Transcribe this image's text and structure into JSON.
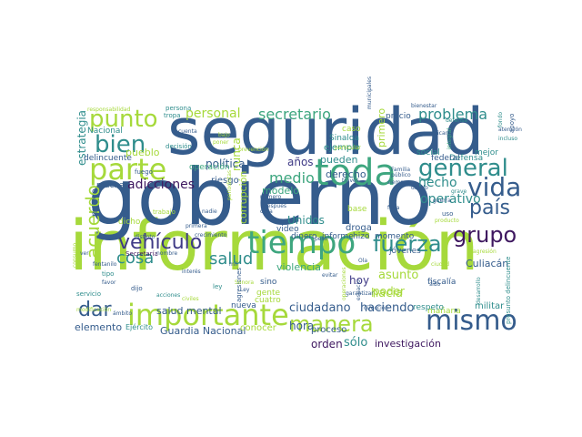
{
  "words": [
    {
      "text": "información",
      "color": "#a6d93b",
      "orientation": "horizontal"
    },
    {
      "text": "gobierno",
      "color": "#355c8c",
      "orientation": "horizontal"
    },
    {
      "text": "seguridad",
      "color": "#355c8c",
      "orientation": "horizontal"
    },
    {
      "text": "tiempo",
      "color": "#3ea67f",
      "orientation": "horizontal"
    },
    {
      "text": "toda",
      "color": "#3ea67f",
      "orientation": "horizontal"
    },
    {
      "text": "importante",
      "color": "#a6d93b",
      "orientation": "horizontal"
    },
    {
      "text": "mismo",
      "color": "#355c8c",
      "orientation": "horizontal"
    },
    {
      "text": "parte",
      "color": "#a6d93b",
      "orientation": "horizontal"
    },
    {
      "text": "punto",
      "color": "#a6d93b",
      "orientation": "horizontal"
    },
    {
      "text": "bien",
      "color": "#2f8d8c",
      "orientation": "horizontal"
    },
    {
      "text": "general",
      "color": "#2f8d8c",
      "orientation": "horizontal"
    },
    {
      "text": "vida",
      "color": "#355c8c",
      "orientation": "horizontal"
    },
    {
      "text": "manera",
      "color": "#a6d93b",
      "orientation": "horizontal"
    },
    {
      "text": "fuerza",
      "color": "#2f8d8c",
      "orientation": "horizontal"
    },
    {
      "text": "vehículo",
      "color": "#3f3a86",
      "orientation": "horizontal"
    },
    {
      "text": "grupo",
      "color": "#3f1860",
      "orientation": "horizontal"
    },
    {
      "text": "país",
      "color": "#355c8c",
      "orientation": "horizontal"
    },
    {
      "text": "acuerdo",
      "color": "#a6d93b",
      "orientation": "vertical"
    },
    {
      "text": "dar",
      "color": "#355c8c",
      "orientation": "horizontal"
    },
    {
      "text": "cosa",
      "color": "#2f8d8c",
      "orientation": "horizontal"
    },
    {
      "text": "salud",
      "color": "#2f8d8c",
      "orientation": "horizontal"
    },
    {
      "text": "secretario",
      "color": "#3ea67f",
      "orientation": "horizontal"
    },
    {
      "text": "personal",
      "color": "#a6d93b",
      "orientation": "horizontal"
    },
    {
      "text": "problema",
      "color": "#2f8d8c",
      "orientation": "horizontal"
    },
    {
      "text": "medio",
      "color": "#3ea67f",
      "orientation": "horizontal"
    },
    {
      "text": "hacia",
      "color": "#a6d93b",
      "orientation": "horizontal"
    },
    {
      "text": "hecho",
      "color": "#2f8d8c",
      "orientation": "horizontal"
    },
    {
      "text": "operativo",
      "color": "#2f8d8c",
      "orientation": "horizontal"
    },
    {
      "text": "adicciones",
      "color": "#3f1860",
      "orientation": "horizontal"
    },
    {
      "text": "asunto",
      "color": "#a6d93b",
      "orientation": "horizontal"
    },
    {
      "text": "poder",
      "color": "#a6d93b",
      "orientation": "horizontal"
    },
    {
      "text": "ciudadano",
      "color": "#355c8c",
      "orientation": "horizontal"
    },
    {
      "text": "haciendo",
      "color": "#355c8c",
      "orientation": "horizontal"
    },
    {
      "text": "hora",
      "color": "#355c8c",
      "orientation": "horizontal"
    },
    {
      "text": "orden",
      "color": "#3f1860",
      "orientation": "horizontal"
    },
    {
      "text": "sólo",
      "color": "#2f8d8c",
      "orientation": "horizontal"
    },
    {
      "text": "investigación",
      "color": "#3f1860",
      "orientation": "horizontal"
    },
    {
      "text": "Culiacán",
      "color": "#355c8c",
      "orientation": "horizontal"
    },
    {
      "text": "violencia",
      "color": "#3ea67f",
      "orientation": "horizontal"
    },
    {
      "text": "Unidos",
      "color": "#2f8d8c",
      "orientation": "horizontal"
    },
    {
      "text": "hoy",
      "color": "#3f3a86",
      "orientation": "horizontal"
    },
    {
      "text": "nunca",
      "color": "#a6d93b",
      "orientation": "vertical"
    },
    {
      "text": "estrategia",
      "color": "#2f8d8c",
      "orientation": "vertical"
    },
    {
      "text": "corrupción",
      "color": "#a6d93b",
      "orientation": "vertical"
    },
    {
      "text": "pueblo",
      "color": "#a6d93b",
      "orientation": "horizontal"
    },
    {
      "text": "política",
      "color": "#355c8c",
      "orientation": "horizontal"
    },
    {
      "text": "años",
      "color": "#3f3a86",
      "orientation": "horizontal"
    },
    {
      "text": "modelo",
      "color": "#3ea67f",
      "orientation": "horizontal"
    },
    {
      "text": "derecho",
      "color": "#355c8c",
      "orientation": "horizontal"
    },
    {
      "text": "pueden",
      "color": "#2f8d8c",
      "orientation": "horizontal"
    },
    {
      "text": "ejemplo",
      "color": "#2f8d8c",
      "orientation": "horizontal"
    },
    {
      "text": "primero",
      "color": "#a6d93b",
      "orientation": "vertical"
    },
    {
      "text": "Guardia Nacional",
      "color": "#355c8c",
      "orientation": "horizontal"
    },
    {
      "text": "salud mental",
      "color": "#355c8c",
      "orientation": "horizontal"
    },
    {
      "text": "elemento",
      "color": "#355c8c",
      "orientation": "horizontal"
    },
    {
      "text": "nuevo",
      "color": "#355c8c",
      "orientation": "vertical"
    },
    {
      "text": "droga",
      "color": "#355c8c",
      "orientation": "horizontal"
    },
    {
      "text": "militar",
      "color": "#2f8d8c",
      "orientation": "horizontal"
    },
    {
      "text": "mañana",
      "color": "#a6d93b",
      "orientation": "horizontal"
    },
    {
      "text": "proceso",
      "color": "#355c8c",
      "orientation": "horizontal"
    },
    {
      "text": "conocer",
      "color": "#a6d93b",
      "orientation": "horizontal"
    },
    {
      "text": "video",
      "color": "#355c8c",
      "orientation": "horizontal"
    },
    {
      "text": "informe",
      "color": "#355c8c",
      "orientation": "horizontal"
    },
    {
      "text": "dinero",
      "color": "#355c8c",
      "orientation": "horizontal"
    },
    {
      "text": "hizo",
      "color": "#355c8c",
      "orientation": "horizontal"
    },
    {
      "text": "riesgo",
      "color": "#355c8c",
      "orientation": "horizontal"
    },
    {
      "text": "muchas",
      "color": "#355c8c",
      "orientation": "horizontal"
    },
    {
      "text": "dicho",
      "color": "#a6d93b",
      "orientation": "horizontal"
    },
    {
      "text": "Nacional",
      "color": "#2f8d8c",
      "orientation": "horizontal"
    },
    {
      "text": "delincuente",
      "color": "#355c8c",
      "orientation": "horizontal"
    },
    {
      "text": "fiscalía",
      "color": "#355c8c",
      "orientation": "horizontal"
    },
    {
      "text": "jóvenes",
      "color": "#355c8c",
      "orientation": "horizontal"
    },
    {
      "text": "Defensa",
      "color": "#2f8d8c",
      "orientation": "horizontal"
    },
    {
      "text": "precio",
      "color": "#355c8c",
      "orientation": "horizontal"
    },
    {
      "text": "caso",
      "color": "#a6d93b",
      "orientation": "horizontal"
    },
    {
      "text": "Sinaloa",
      "color": "#2f8d8c",
      "orientation": "horizontal"
    },
    {
      "text": "operación",
      "color": "#3ea67f",
      "orientation": "horizontal"
    },
    {
      "text": "social",
      "color": "#2f8d8c",
      "orientation": "horizontal"
    },
    {
      "text": "federal",
      "color": "#355c8c",
      "orientation": "horizontal"
    },
    {
      "text": "cuatro",
      "color": "#a6d93b",
      "orientation": "horizontal"
    },
    {
      "text": "gente",
      "color": "#a6d93b",
      "orientation": "horizontal"
    },
    {
      "text": "sino",
      "color": "#355c8c",
      "orientation": "horizontal"
    },
    {
      "text": "nueva",
      "color": "#355c8c",
      "orientation": "horizontal"
    },
    {
      "text": "Ejército",
      "color": "#2f8d8c",
      "orientation": "horizontal"
    },
    {
      "text": "respeto",
      "color": "#2f8d8c",
      "orientation": "horizontal"
    },
    {
      "text": "mejor",
      "color": "#2f8d8c",
      "orientation": "horizontal"
    },
    {
      "text": "base",
      "color": "#a6d93b",
      "orientation": "horizontal"
    },
    {
      "text": "momento",
      "color": "#355c8c",
      "orientation": "horizontal"
    },
    {
      "text": "Secretaría",
      "color": "#3f1860",
      "orientation": "horizontal"
    },
    {
      "text": "tipo",
      "color": "#2f8d8c",
      "orientation": "horizontal"
    },
    {
      "text": "dijo",
      "color": "#355c8c",
      "orientation": "horizontal"
    },
    {
      "text": "ley",
      "color": "#2f8d8c",
      "orientation": "horizontal"
    },
    {
      "text": "persona",
      "color": "#2f8d8c",
      "orientation": "horizontal"
    },
    {
      "text": "responsabilidad",
      "color": "#a6d93b",
      "orientation": "horizontal"
    },
    {
      "text": "tropa",
      "color": "#2f8d8c",
      "orientation": "horizontal"
    },
    {
      "text": "fuego",
      "color": "#355c8c",
      "orientation": "horizontal"
    },
    {
      "text": "decisión",
      "color": "#2f8d8c",
      "orientation": "horizontal"
    },
    {
      "text": "cuenta",
      "color": "#355c8c",
      "orientation": "horizontal"
    },
    {
      "text": "poner",
      "color": "#a6d93b",
      "orientation": "horizontal"
    },
    {
      "text": "trabajo",
      "color": "#a6d93b",
      "orientation": "horizontal"
    },
    {
      "text": "nadie",
      "color": "#355c8c",
      "orientation": "horizontal"
    },
    {
      "text": "crecimiento",
      "color": "#355c8c",
      "orientation": "horizontal"
    },
    {
      "text": "distinto",
      "color": "#355c8c",
      "orientation": "horizontal"
    },
    {
      "text": "fentanilo",
      "color": "#355c8c",
      "orientation": "horizontal"
    },
    {
      "text": "servicio",
      "color": "#2f8d8c",
      "orientation": "horizontal"
    },
    {
      "text": "interés",
      "color": "#355c8c",
      "orientation": "horizontal"
    },
    {
      "text": "través",
      "color": "#355c8c",
      "orientation": "horizontal"
    },
    {
      "text": "casa",
      "color": "#355c8c",
      "orientation": "horizontal"
    },
    {
      "text": "número",
      "color": "#355c8c",
      "orientation": "horizontal"
    },
    {
      "text": "guerra",
      "color": "#355c8c",
      "orientation": "horizontal"
    },
    {
      "text": "falta",
      "color": "#355c8c",
      "orientation": "horizontal"
    },
    {
      "text": "uso",
      "color": "#355c8c",
      "orientation": "horizontal"
    },
    {
      "text": "peso",
      "color": "#355c8c",
      "orientation": "horizontal"
    },
    {
      "text": "sido",
      "color": "#355c8c",
      "orientation": "horizontal"
    },
    {
      "text": "evitar",
      "color": "#355c8c",
      "orientation": "horizontal"
    },
    {
      "text": "desarrollo",
      "color": "#2f8d8c",
      "orientation": "vertical"
    },
    {
      "text": "bienestar",
      "color": "#355c8c",
      "orientation": "horizontal"
    },
    {
      "text": "apoyo",
      "color": "#355c8c",
      "orientation": "vertical"
    },
    {
      "text": "mexicano",
      "color": "#355c8c",
      "orientation": "horizontal"
    },
    {
      "text": "Familia",
      "color": "#355c8c",
      "orientation": "horizontal"
    },
    {
      "text": "público",
      "color": "#355c8c",
      "orientation": "horizontal"
    },
    {
      "text": "siempre",
      "color": "#355c8c",
      "orientation": "horizontal"
    },
    {
      "text": "dando",
      "color": "#355c8c",
      "orientation": "horizontal"
    },
    {
      "text": "primera",
      "color": "#355c8c",
      "orientation": "horizontal"
    },
    {
      "text": "incluso",
      "color": "#2f8d8c",
      "orientation": "horizontal"
    },
    {
      "text": "atención",
      "color": "#355c8c",
      "orientation": "horizontal"
    },
    {
      "text": "nombre",
      "color": "#355c8c",
      "orientation": "horizontal"
    },
    {
      "text": "agresiones",
      "color": "#355c8c",
      "orientation": "vertical"
    },
    {
      "text": "presunto delincuente",
      "color": "#2f8d8c",
      "orientation": "vertical"
    },
    {
      "text": "consumo",
      "color": "#a6d93b",
      "orientation": "vertical"
    },
    {
      "text": "operaciones",
      "color": "#a6d93b",
      "orientation": "vertical"
    },
    {
      "text": "periodistas",
      "color": "#a6d93b",
      "orientation": "vertical"
    },
    {
      "text": "integral",
      "color": "#3ea67f",
      "orientation": "vertical"
    },
    {
      "text": "espacio",
      "color": "#355c8c",
      "orientation": "vertical"
    },
    {
      "text": "fondo",
      "color": "#2f8d8c",
      "orientation": "vertical"
    },
    {
      "text": "Sonora",
      "color": "#a6d93b",
      "orientation": "horizontal"
    },
    {
      "text": "mil",
      "color": "#355c8c",
      "orientation": "horizontal"
    },
    {
      "text": "grave",
      "color": "#2f8d8c",
      "orientation": "horizontal"
    },
    {
      "text": "producto",
      "color": "#a6d93b",
      "orientation": "horizontal"
    },
    {
      "text": "agresión",
      "color": "#a6d93b",
      "orientation": "horizontal"
    },
    {
      "text": "prevención",
      "color": "#a6d93b",
      "orientation": "horizontal"
    },
    {
      "text": "municipales",
      "color": "#355c8c",
      "orientation": "horizontal"
    },
    {
      "text": "particular",
      "color": "#a6d93b",
      "orientation": "horizontal"
    },
    {
      "text": "defensa",
      "color": "#2f8d8c",
      "orientation": "horizontal"
    },
    {
      "text": "después",
      "color": "#355c8c",
      "orientation": "horizontal"
    },
    {
      "text": "ciudad",
      "color": "#a6d93b",
      "orientation": "horizontal"
    },
    {
      "text": "bajo",
      "color": "#a6d93b",
      "orientation": "horizontal"
    },
    {
      "text": "Ley",
      "color": "#355c8c",
      "orientation": "horizontal"
    },
    {
      "text": "garantizar",
      "color": "#355c8c",
      "orientation": "horizontal"
    },
    {
      "text": "acciones",
      "color": "#2f8d8c",
      "orientation": "horizontal"
    },
    {
      "text": "civiles",
      "color": "#a6d93b",
      "orientation": "horizontal"
    },
    {
      "text": "ámbito",
      "color": "#355c8c",
      "orientation": "horizontal"
    },
    {
      "text": "dirección",
      "color": "#355c8c",
      "orientation": "horizontal"
    },
    {
      "text": "modificación",
      "color": "#a6d93b",
      "orientation": "horizontal"
    },
    {
      "text": "ir",
      "color": "#355c8c",
      "orientation": "horizontal"
    },
    {
      "text": "ver",
      "color": "#355c8c",
      "orientation": "horizontal"
    },
    {
      "text": "favor",
      "color": "#355c8c",
      "orientation": "horizontal"
    },
    {
      "text": "Ola",
      "color": "#355c8c",
      "orientation": "horizontal"
    }
  ]
}
